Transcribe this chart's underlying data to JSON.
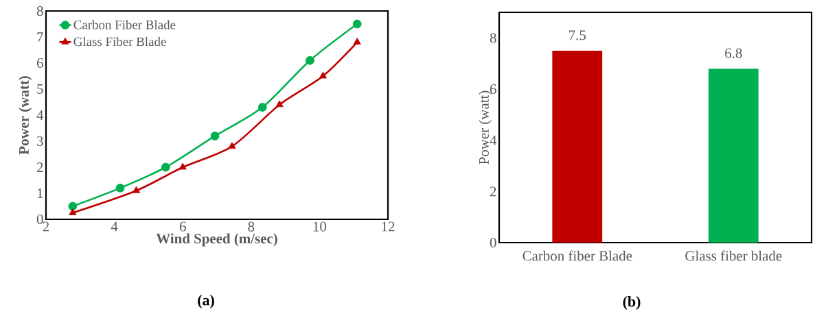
{
  "chart_data": [
    {
      "type": "line",
      "xlabel": "Wind Speed (m/sec)",
      "ylabel": "Power (watt)",
      "xlim": [
        2,
        12
      ],
      "ylim": [
        0,
        8
      ],
      "xticks": [
        2,
        4,
        6,
        8,
        10,
        12
      ],
      "yticks": [
        0,
        1,
        2,
        3,
        4,
        5,
        6,
        7,
        8
      ],
      "grid": false,
      "legend": "top left",
      "annotations": [
        "(a)"
      ],
      "series": [
        {
          "name": "Carbon Fiber Blade",
          "color": "#00b050",
          "marker": "circle",
          "x": [
            2.78,
            4.17,
            5.5,
            6.94,
            8.33,
            9.72,
            11.1
          ],
          "values": [
            0.5,
            1.2,
            2.0,
            3.2,
            4.3,
            6.1,
            7.5
          ]
        },
        {
          "name": "Glass Fiber Blade",
          "color": "#c00000",
          "marker": "triangle",
          "x": [
            2.78,
            4.64,
            6.0,
            7.44,
            8.83,
            10.1,
            11.1
          ],
          "values": [
            0.25,
            1.1,
            2.0,
            2.8,
            4.4,
            5.5,
            6.8
          ]
        }
      ]
    },
    {
      "type": "bar",
      "ylabel": "Power (watt)",
      "categories": [
        "Carbon fiber Blade",
        "Glass fiber blade"
      ],
      "values": [
        7.5,
        6.8
      ],
      "colors": [
        "#c00000",
        "#00b050"
      ],
      "value_labels": [
        "7.5",
        "6.8"
      ],
      "ylim": [
        0,
        9
      ],
      "yticks": [
        0,
        2,
        4,
        6,
        8
      ],
      "grid": false,
      "annotations": [
        "(b)"
      ]
    }
  ]
}
